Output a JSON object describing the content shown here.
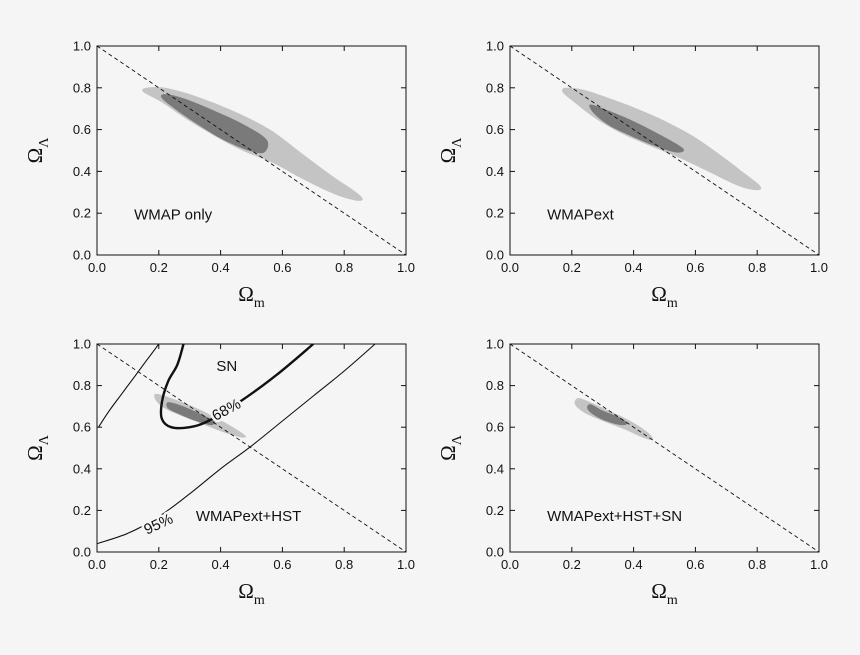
{
  "chart_data": [
    {
      "type": "contour",
      "panel_label": "WMAP only",
      "xlabel": "Ω",
      "xlabel_sub": "m",
      "ylabel": "Ω",
      "ylabel_sub": "Λ",
      "xlim": [
        0,
        1
      ],
      "ylim": [
        0,
        1
      ],
      "xticks": [
        "0.0",
        "0.2",
        "0.4",
        "0.6",
        "0.8",
        "1.0"
      ],
      "yticks": [
        "0.0",
        "0.2",
        "0.4",
        "0.6",
        "0.8",
        "1.0"
      ],
      "flat_universe_line": [
        [
          0,
          1
        ],
        [
          1,
          0
        ]
      ],
      "regions": [
        {
          "level": "95%",
          "color": "#c4c4c4",
          "points": [
            [
              0.16,
              0.8
            ],
            [
              0.22,
              0.8
            ],
            [
              0.32,
              0.76
            ],
            [
              0.44,
              0.69
            ],
            [
              0.56,
              0.6
            ],
            [
              0.66,
              0.49
            ],
            [
              0.76,
              0.38
            ],
            [
              0.83,
              0.31
            ],
            [
              0.86,
              0.27
            ],
            [
              0.84,
              0.26
            ],
            [
              0.77,
              0.29
            ],
            [
              0.67,
              0.36
            ],
            [
              0.57,
              0.44
            ],
            [
              0.47,
              0.5
            ],
            [
              0.38,
              0.57
            ],
            [
              0.29,
              0.65
            ],
            [
              0.21,
              0.73
            ],
            [
              0.15,
              0.78
            ]
          ]
        },
        {
          "level": "68%",
          "color": "#7a7a7a",
          "points": [
            [
              0.22,
              0.77
            ],
            [
              0.28,
              0.75
            ],
            [
              0.38,
              0.69
            ],
            [
              0.48,
              0.62
            ],
            [
              0.55,
              0.55
            ],
            [
              0.54,
              0.49
            ],
            [
              0.49,
              0.5
            ],
            [
              0.41,
              0.55
            ],
            [
              0.33,
              0.62
            ],
            [
              0.26,
              0.69
            ],
            [
              0.21,
              0.75
            ]
          ]
        }
      ],
      "curves": []
    },
    {
      "type": "contour",
      "panel_label": "WMAPext",
      "xlabel": "Ω",
      "xlabel_sub": "m",
      "ylabel": "Ω",
      "ylabel_sub": "Λ",
      "xlim": [
        0,
        1
      ],
      "ylim": [
        0,
        1
      ],
      "xticks": [
        "0.0",
        "0.2",
        "0.4",
        "0.6",
        "0.8",
        "1.0"
      ],
      "yticks": [
        "0.0",
        "0.2",
        "0.4",
        "0.6",
        "0.8",
        "1.0"
      ],
      "flat_universe_line": [
        [
          0,
          1
        ],
        [
          1,
          0
        ]
      ],
      "regions": [
        {
          "level": "95%",
          "color": "#c4c4c4",
          "points": [
            [
              0.18,
              0.8
            ],
            [
              0.24,
              0.79
            ],
            [
              0.34,
              0.74
            ],
            [
              0.46,
              0.67
            ],
            [
              0.58,
              0.58
            ],
            [
              0.68,
              0.48
            ],
            [
              0.76,
              0.39
            ],
            [
              0.81,
              0.33
            ],
            [
              0.8,
              0.31
            ],
            [
              0.74,
              0.33
            ],
            [
              0.64,
              0.4
            ],
            [
              0.54,
              0.47
            ],
            [
              0.44,
              0.53
            ],
            [
              0.35,
              0.59
            ],
            [
              0.27,
              0.66
            ],
            [
              0.2,
              0.74
            ],
            [
              0.17,
              0.78
            ]
          ]
        },
        {
          "level": "68%",
          "color": "#7a7a7a",
          "points": [
            [
              0.26,
              0.72
            ],
            [
              0.32,
              0.69
            ],
            [
              0.4,
              0.64
            ],
            [
              0.48,
              0.58
            ],
            [
              0.56,
              0.51
            ],
            [
              0.54,
              0.49
            ],
            [
              0.47,
              0.52
            ],
            [
              0.39,
              0.57
            ],
            [
              0.32,
              0.62
            ],
            [
              0.27,
              0.68
            ]
          ]
        }
      ],
      "curves": []
    },
    {
      "type": "contour",
      "panel_label": "WMAPext+HST",
      "xlabel": "Ω",
      "xlabel_sub": "m",
      "ylabel": "Ω",
      "ylabel_sub": "Λ",
      "xlim": [
        0,
        1
      ],
      "ylim": [
        0,
        1
      ],
      "xticks": [
        "0.0",
        "0.2",
        "0.4",
        "0.6",
        "0.8",
        "1.0"
      ],
      "yticks": [
        "0.0",
        "0.2",
        "0.4",
        "0.6",
        "0.8",
        "1.0"
      ],
      "flat_universe_line": [
        [
          0,
          1
        ],
        [
          1,
          0
        ]
      ],
      "regions": [
        {
          "level": "95%",
          "color": "#c4c4c4",
          "points": [
            [
              0.19,
              0.76
            ],
            [
              0.24,
              0.74
            ],
            [
              0.31,
              0.7
            ],
            [
              0.38,
              0.65
            ],
            [
              0.44,
              0.6
            ],
            [
              0.48,
              0.56
            ],
            [
              0.47,
              0.55
            ],
            [
              0.42,
              0.57
            ],
            [
              0.35,
              0.61
            ],
            [
              0.28,
              0.65
            ],
            [
              0.22,
              0.69
            ],
            [
              0.19,
              0.73
            ]
          ]
        },
        {
          "level": "68%",
          "color": "#7a7a7a",
          "points": [
            [
              0.23,
              0.72
            ],
            [
              0.28,
              0.7
            ],
            [
              0.34,
              0.66
            ],
            [
              0.38,
              0.63
            ],
            [
              0.37,
              0.61
            ],
            [
              0.32,
              0.63
            ],
            [
              0.27,
              0.66
            ],
            [
              0.23,
              0.69
            ]
          ]
        }
      ],
      "curves": [
        {
          "name": "SN 68%",
          "weight": "thick",
          "points": [
            [
              0.7,
              1.0
            ],
            [
              0.58,
              0.85
            ],
            [
              0.46,
              0.72
            ],
            [
              0.36,
              0.63
            ],
            [
              0.3,
              0.6
            ],
            [
              0.24,
              0.6
            ],
            [
              0.21,
              0.64
            ],
            [
              0.21,
              0.72
            ],
            [
              0.23,
              0.82
            ],
            [
              0.26,
              0.9
            ],
            [
              0.28,
              1.0
            ]
          ]
        },
        {
          "name": "SN 95% inner",
          "weight": "thin",
          "points": [
            [
              0.005,
              0.6
            ],
            [
              0.04,
              0.68
            ],
            [
              0.08,
              0.76
            ],
            [
              0.12,
              0.84
            ],
            [
              0.16,
              0.92
            ],
            [
              0.2,
              1.0
            ]
          ]
        },
        {
          "name": "SN 95% outer",
          "weight": "thin",
          "points": [
            [
              0.0,
              0.04
            ],
            [
              0.1,
              0.09
            ],
            [
              0.2,
              0.17
            ],
            [
              0.3,
              0.28
            ],
            [
              0.4,
              0.4
            ],
            [
              0.5,
              0.51
            ],
            [
              0.6,
              0.63
            ],
            [
              0.7,
              0.75
            ],
            [
              0.8,
              0.87
            ],
            [
              0.9,
              1.0
            ]
          ]
        }
      ],
      "annotations": [
        {
          "text": "SN",
          "x": 0.42,
          "y": 0.89,
          "angle": 0
        },
        {
          "text": "68%",
          "x": 0.42,
          "y": 0.68,
          "angle": -28
        },
        {
          "text": "95%",
          "x": 0.2,
          "y": 0.13,
          "angle": -25
        }
      ]
    },
    {
      "type": "contour",
      "panel_label": "WMAPext+HST+SN",
      "xlabel": "Ω",
      "xlabel_sub": "m",
      "ylabel": "Ω",
      "ylabel_sub": "Λ",
      "xlim": [
        0,
        1
      ],
      "ylim": [
        0,
        1
      ],
      "xticks": [
        "0.0",
        "0.2",
        "0.4",
        "0.6",
        "0.8",
        "1.0"
      ],
      "yticks": [
        "0.0",
        "0.2",
        "0.4",
        "0.6",
        "0.8",
        "1.0"
      ],
      "flat_universe_line": [
        [
          0,
          1
        ],
        [
          1,
          0
        ]
      ],
      "regions": [
        {
          "level": "95%",
          "color": "#c4c4c4",
          "points": [
            [
              0.22,
              0.74
            ],
            [
              0.26,
              0.72
            ],
            [
              0.32,
              0.68
            ],
            [
              0.39,
              0.63
            ],
            [
              0.45,
              0.57
            ],
            [
              0.46,
              0.54
            ],
            [
              0.43,
              0.55
            ],
            [
              0.37,
              0.59
            ],
            [
              0.3,
              0.63
            ],
            [
              0.24,
              0.67
            ],
            [
              0.21,
              0.71
            ]
          ]
        },
        {
          "level": "68%",
          "color": "#7a7a7a",
          "points": [
            [
              0.26,
              0.71
            ],
            [
              0.3,
              0.68
            ],
            [
              0.35,
              0.65
            ],
            [
              0.38,
              0.62
            ],
            [
              0.36,
              0.61
            ],
            [
              0.31,
              0.63
            ],
            [
              0.27,
              0.66
            ],
            [
              0.25,
              0.69
            ]
          ]
        }
      ],
      "curves": []
    }
  ]
}
